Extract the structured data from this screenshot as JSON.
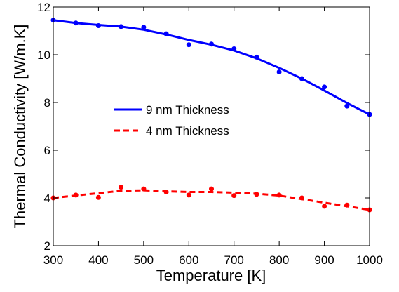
{
  "chart_data": {
    "type": "line",
    "title": "",
    "xlabel": "Temperature [K]",
    "ylabel": "Thermal Conductivity [W/m.K]",
    "xlim": [
      300,
      1000
    ],
    "ylim": [
      2,
      12
    ],
    "xticks": [
      300,
      400,
      500,
      600,
      700,
      800,
      900,
      1000
    ],
    "yticks": [
      2,
      4,
      6,
      8,
      10,
      12
    ],
    "grid": false,
    "legend_position": "center",
    "series": [
      {
        "name": "9 nm Thickness",
        "color": "#0000ff",
        "line_style": "solid",
        "fit_line": {
          "x": [
            300,
            350,
            400,
            450,
            500,
            550,
            600,
            650,
            700,
            750,
            800,
            850,
            900,
            950,
            1000
          ],
          "y": [
            11.45,
            11.33,
            11.25,
            11.18,
            11.05,
            10.85,
            10.62,
            10.42,
            10.18,
            9.85,
            9.45,
            9.0,
            8.5,
            7.98,
            7.5
          ]
        },
        "points": {
          "x": [
            300,
            350,
            400,
            450,
            500,
            550,
            600,
            650,
            700,
            750,
            800,
            850,
            900,
            950,
            1000
          ],
          "y": [
            11.45,
            11.33,
            11.22,
            11.18,
            11.15,
            10.88,
            10.42,
            10.45,
            10.25,
            9.9,
            9.28,
            9.0,
            8.65,
            7.85,
            7.5
          ]
        }
      },
      {
        "name": "4 nm Thickness",
        "color": "#ff0000",
        "line_style": "dashed",
        "fit_line": {
          "x": [
            300,
            350,
            400,
            450,
            500,
            550,
            600,
            650,
            700,
            750,
            800,
            850,
            900,
            950,
            1000
          ],
          "y": [
            4.0,
            4.1,
            4.2,
            4.3,
            4.32,
            4.28,
            4.25,
            4.25,
            4.22,
            4.18,
            4.1,
            3.95,
            3.8,
            3.65,
            3.5
          ]
        },
        "points": {
          "x": [
            300,
            350,
            400,
            450,
            500,
            550,
            600,
            650,
            700,
            750,
            800,
            850,
            900,
            950,
            1000
          ],
          "y": [
            4.0,
            4.12,
            4.02,
            4.45,
            4.38,
            4.25,
            4.12,
            4.38,
            4.1,
            4.15,
            4.12,
            4.0,
            3.65,
            3.7,
            3.5
          ]
        }
      }
    ]
  }
}
